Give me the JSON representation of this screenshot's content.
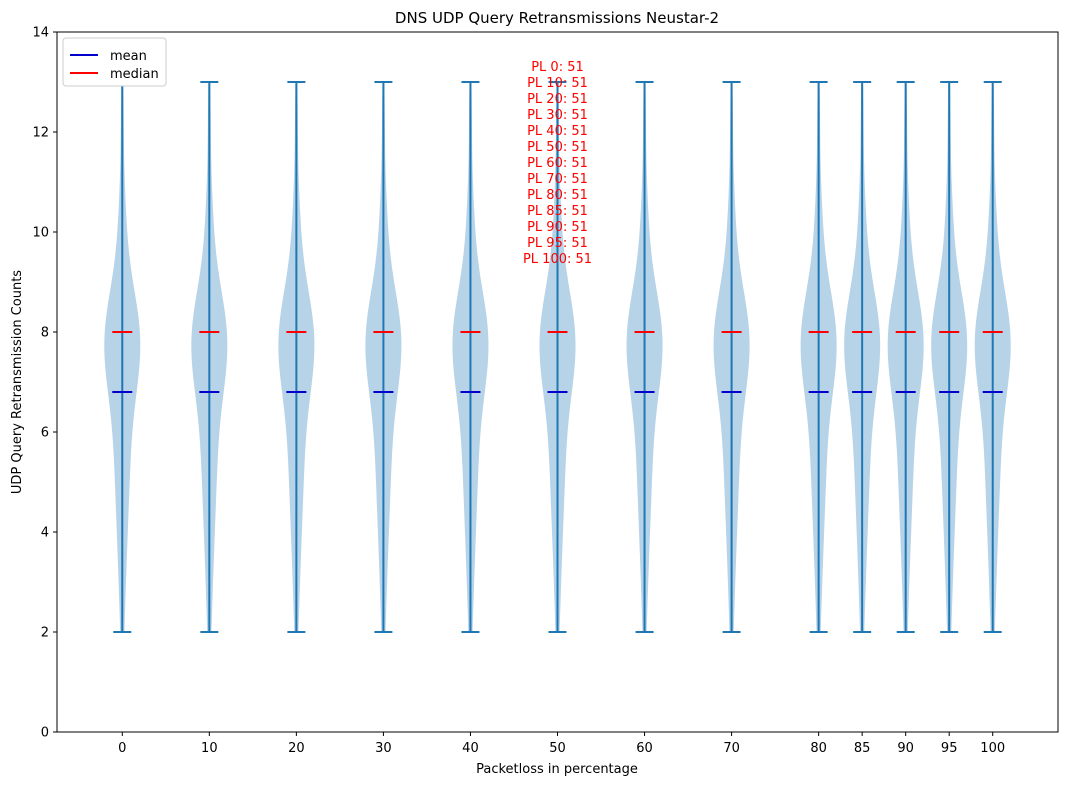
{
  "chart_data": {
    "type": "violin",
    "title": "DNS UDP Query Retransmissions Neustar-2",
    "xlabel": "Packetloss in percentage",
    "ylabel": "UDP Query Retransmission Counts",
    "ylim": [
      0,
      14
    ],
    "yticks": [
      0,
      2,
      4,
      6,
      8,
      10,
      12,
      14
    ],
    "categories": [
      0,
      10,
      20,
      30,
      40,
      50,
      60,
      70,
      80,
      85,
      90,
      95,
      100
    ],
    "min": 2,
    "max": 13,
    "mean": 6.8,
    "median": 8,
    "legend": {
      "placement": "upper-left",
      "entries": [
        {
          "label": "mean",
          "color": "#0000cc"
        },
        {
          "label": "median",
          "color": "#ff0000"
        }
      ]
    },
    "annotations": [
      "PL 0: 51",
      "PL 10: 51",
      "PL 20: 51",
      "PL 30: 51",
      "PL 40: 51",
      "PL 50: 51",
      "PL 60: 51",
      "PL 70: 51",
      "PL 80: 51",
      "PL 85: 51",
      "PL 90: 51",
      "PL 95: 51",
      "PL 100: 51"
    ],
    "colors": {
      "violin_fill": "#b6d3e8",
      "violin_line": "#1f77b4",
      "mean_line": "#0000cc",
      "median_line": "#ff0000",
      "annotation": "#ff0000"
    },
    "grid": false
  }
}
